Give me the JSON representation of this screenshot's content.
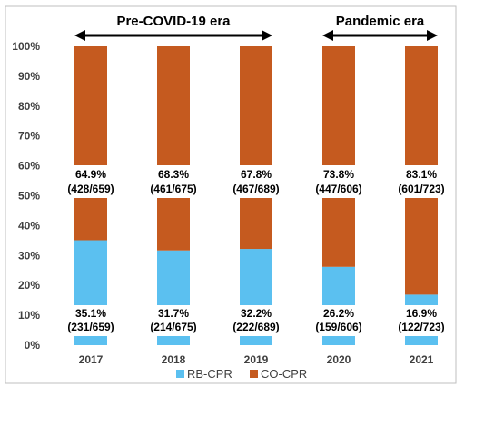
{
  "chart_data": {
    "type": "bar",
    "stacked": true,
    "categories": [
      "2017",
      "2018",
      "2019",
      "2020",
      "2021"
    ],
    "ylim": [
      0,
      100
    ],
    "yticks": [
      "0%",
      "10%",
      "20%",
      "30%",
      "40%",
      "50%",
      "60%",
      "70%",
      "80%",
      "90%",
      "100%"
    ],
    "series": [
      {
        "name": "RB-CPR",
        "color": "#5bc0f0",
        "values": [
          35.1,
          31.7,
          32.2,
          26.2,
          16.9
        ],
        "labels": [
          "35.1%",
          "31.7%",
          "32.2%",
          "26.2%",
          "16.9%"
        ],
        "counts": [
          "(231/659)",
          "(214/675)",
          "(222/689)",
          "(159/606)",
          "(122/723)"
        ]
      },
      {
        "name": "CO-CPR",
        "color": "#c55a1f",
        "values": [
          64.9,
          68.3,
          67.8,
          73.8,
          83.1
        ],
        "labels": [
          "64.9%",
          "68.3%",
          "67.8%",
          "73.8%",
          "83.1%"
        ],
        "counts": [
          "(428/659)",
          "(461/675)",
          "(467/689)",
          "(447/606)",
          "(601/723)"
        ]
      }
    ],
    "annotations": {
      "eras": [
        {
          "label": "Pre-COVID-19 era",
          "from": "2017",
          "to": "2019"
        },
        {
          "label": "Pandemic era",
          "from": "2020",
          "to": "2021"
        }
      ]
    },
    "legend": {
      "position": "bottom"
    },
    "grid": false
  }
}
